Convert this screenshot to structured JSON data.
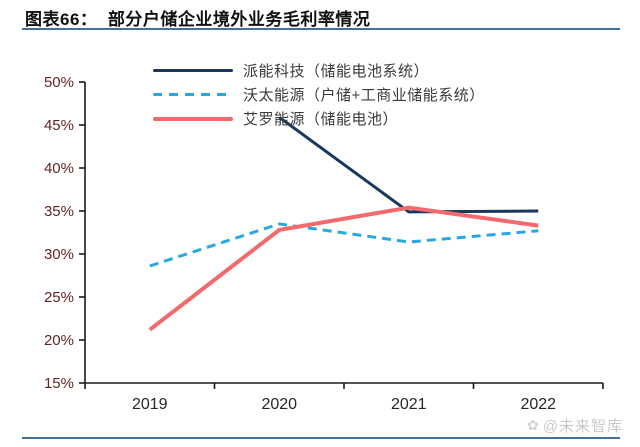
{
  "page": {
    "title": "图表66：  部分户储企业境外业务毛利率情况",
    "watermark_text": "@未来智库",
    "accent_rule_color": "#41719c"
  },
  "chart_data": {
    "type": "line",
    "title": "部分户储企业境外业务毛利率情况",
    "categories": [
      "2019",
      "2020",
      "2021",
      "2022"
    ],
    "y_tick_labels": [
      "50%",
      "45%",
      "40%",
      "35%",
      "30%",
      "25%",
      "20%",
      "15%"
    ],
    "ylim": [
      15,
      50
    ],
    "y_step": 5,
    "grid": false,
    "legend_position": "top-left-inside",
    "series": [
      {
        "name": "派能科技（储能电池系统）",
        "color": "#17375e",
        "style": "solid",
        "stroke_width": 3,
        "values": [
          null,
          45.9,
          34.9,
          35.0
        ]
      },
      {
        "name": "沃太能源（户储+工商业储能系统）",
        "color": "#29a8e0",
        "style": "dashed",
        "stroke_width": 3,
        "values": [
          28.6,
          33.5,
          31.4,
          32.7
        ]
      },
      {
        "name": "艾罗能源（储能电池）",
        "color": "#f4696b",
        "style": "solid",
        "stroke_width": 4,
        "values": [
          21.2,
          32.8,
          35.4,
          33.3
        ]
      }
    ],
    "axis_colors": {
      "y_label": "#632423",
      "x_label": "#262626",
      "axis_line": "#1a1a1a"
    }
  }
}
